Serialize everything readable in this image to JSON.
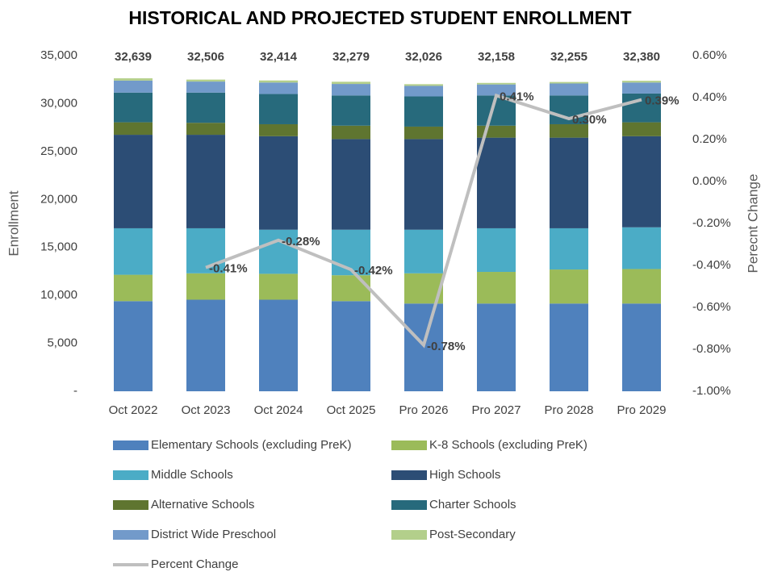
{
  "chart_data": {
    "type": "bar",
    "stacked": true,
    "title": "HISTORICAL AND PROJECTED STUDENT ENROLLMENT",
    "y_label": "Enrollment",
    "y2_label": "Perecnt Change",
    "categories": [
      "Oct 2022",
      "Oct 2023",
      "Oct 2024",
      "Oct 2025",
      "Pro 2026",
      "Pro 2027",
      "Pro 2028",
      "Pro 2029"
    ],
    "totals": [
      32639,
      32506,
      32414,
      32279,
      32026,
      32158,
      32255,
      32380
    ],
    "total_labels": [
      "32,639",
      "32,506",
      "32,414",
      "32,279",
      "32,026",
      "32,158",
      "32,255",
      "32,380"
    ],
    "series": [
      {
        "name": "Elementary Schools (excluding PreK)",
        "color": "#4f81bd",
        "values": [
          9400,
          9550,
          9550,
          9400,
          9150,
          9150,
          9150,
          9150
        ]
      },
      {
        "name": "K-8 Schools (excluding PreK)",
        "color": "#9bbb59",
        "values": [
          2750,
          2750,
          2700,
          2700,
          3150,
          3300,
          3550,
          3600
        ]
      },
      {
        "name": "Middle Schools",
        "color": "#4bacc6",
        "values": [
          4850,
          4700,
          4600,
          4750,
          4550,
          4550,
          4300,
          4350
        ]
      },
      {
        "name": "High Schools",
        "color": "#2c4d75",
        "values": [
          9750,
          9750,
          9750,
          9450,
          9450,
          9450,
          9450,
          9500
        ]
      },
      {
        "name": "Alternative Schools",
        "color": "#5f7530",
        "values": [
          1300,
          1250,
          1250,
          1400,
          1300,
          1250,
          1400,
          1450
        ]
      },
      {
        "name": "Charter Schools",
        "color": "#276a7c",
        "values": [
          3100,
          3150,
          3150,
          3150,
          3150,
          3150,
          3000,
          3000
        ]
      },
      {
        "name": "District Wide Preschool",
        "color": "#729aca",
        "values": [
          1250,
          1150,
          1200,
          1200,
          1100,
          1150,
          1250,
          1150
        ]
      },
      {
        "name": "Post-Secondary",
        "color": "#b3cf8b",
        "values": [
          239,
          206,
          214,
          229,
          176,
          158,
          155,
          180
        ]
      },
      {
        "name": "Percent Change",
        "type": "line",
        "axis": "y2",
        "color": "#bfbfbf",
        "values": [
          null,
          -0.41,
          -0.28,
          -0.42,
          -0.78,
          0.41,
          0.3,
          0.39
        ],
        "value_labels": [
          null,
          "-0.41%",
          "-0.28%",
          "-0.42%",
          "-0.78%",
          "0.41%",
          "0.30%",
          "0.39%"
        ]
      }
    ],
    "ylim": [
      0,
      35000
    ],
    "yticks": [
      {
        "value": 0,
        "label": "-"
      },
      {
        "value": 5000,
        "label": "5,000"
      },
      {
        "value": 10000,
        "label": "10,000"
      },
      {
        "value": 15000,
        "label": "15,000"
      },
      {
        "value": 20000,
        "label": "20,000"
      },
      {
        "value": 25000,
        "label": "25,000"
      },
      {
        "value": 30000,
        "label": "30,000"
      },
      {
        "value": 35000,
        "label": "35,000"
      }
    ],
    "y2lim": [
      -1.0,
      0.6
    ],
    "y2ticks": [
      {
        "value": -1.0,
        "label": "-1.00%"
      },
      {
        "value": -0.8,
        "label": "-0.80%"
      },
      {
        "value": -0.6,
        "label": "-0.60%"
      },
      {
        "value": -0.4,
        "label": "-0.40%"
      },
      {
        "value": -0.2,
        "label": "-0.20%"
      },
      {
        "value": 0,
        "label": "0.00%"
      },
      {
        "value": 0.2,
        "label": "0.20%"
      },
      {
        "value": 0.4,
        "label": "0.40%"
      },
      {
        "value": 0.6,
        "label": "0.60%"
      }
    ],
    "grid": false,
    "legend": "bottom"
  }
}
